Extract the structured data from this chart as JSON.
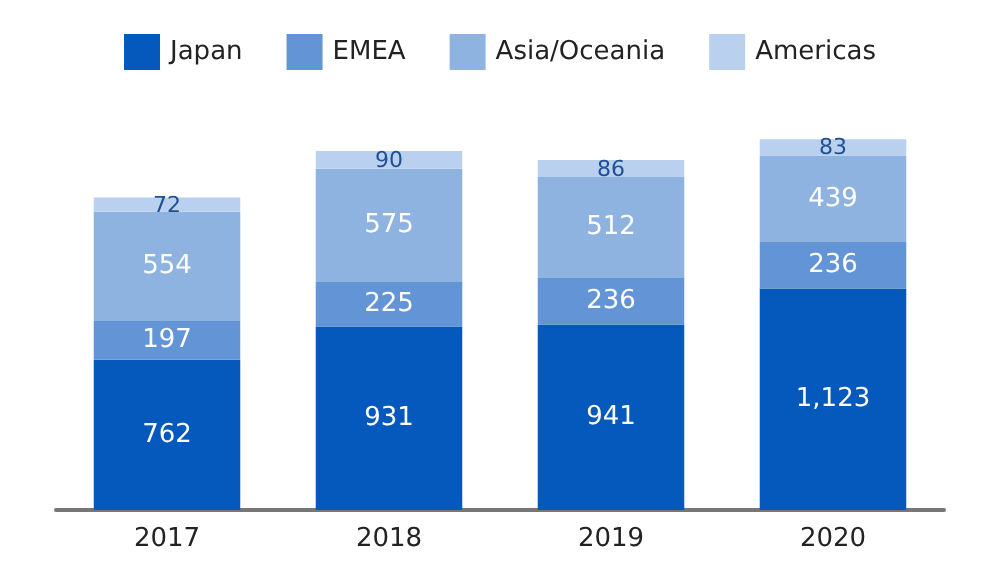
{
  "chart_data": {
    "type": "bar",
    "stacked": true,
    "categories": [
      "2017",
      "2018",
      "2019",
      "2020"
    ],
    "series": [
      {
        "name": "Japan",
        "color": "#0558bc",
        "values": [
          762,
          931,
          941,
          1123
        ],
        "value_labels": [
          "762",
          "931",
          "941",
          "1,123"
        ]
      },
      {
        "name": "EMEA",
        "color": "#6394d6",
        "values": [
          197,
          225,
          236,
          236
        ],
        "value_labels": [
          "197",
          "225",
          "236",
          "236"
        ]
      },
      {
        "name": "Asia/Oceania",
        "color": "#8fb3e0",
        "values": [
          554,
          575,
          512,
          439
        ],
        "value_labels": [
          "554",
          "575",
          "512",
          "439"
        ]
      },
      {
        "name": "Americas",
        "color": "#b9d0ee",
        "values": [
          72,
          90,
          86,
          83
        ],
        "value_labels": [
          "72",
          "90",
          "86",
          "83"
        ]
      }
    ],
    "legend": "top"
  }
}
